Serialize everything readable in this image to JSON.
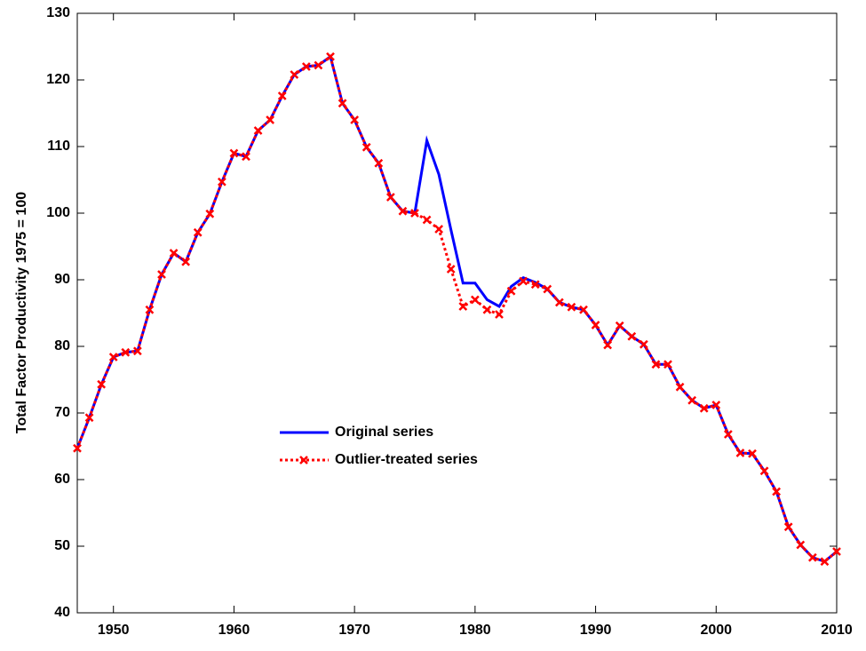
{
  "chart_data": {
    "type": "line",
    "ylabel": "Total Factor Productivity 1975 = 100",
    "x": [
      1947,
      1948,
      1949,
      1950,
      1951,
      1952,
      1953,
      1954,
      1955,
      1956,
      1957,
      1958,
      1959,
      1960,
      1961,
      1962,
      1963,
      1964,
      1965,
      1966,
      1967,
      1968,
      1969,
      1970,
      1971,
      1972,
      1973,
      1974,
      1975,
      1976,
      1977,
      1978,
      1979,
      1980,
      1981,
      1982,
      1983,
      1984,
      1985,
      1986,
      1987,
      1988,
      1989,
      1990,
      1991,
      1992,
      1993,
      1994,
      1995,
      1996,
      1997,
      1998,
      1999,
      2000,
      2001,
      2002,
      2003,
      2004,
      2005,
      2006,
      2007,
      2008,
      2009,
      2010
    ],
    "series": [
      {
        "name": "Original series",
        "color": "#0000ff",
        "linestyle": "solid",
        "marker": "none",
        "values": [
          64.7,
          69.3,
          74.3,
          78.4,
          79.1,
          79.3,
          85.5,
          90.8,
          94.0,
          92.7,
          97.1,
          99.9,
          104.7,
          109.0,
          108.5,
          112.4,
          114.0,
          117.6,
          120.8,
          122.0,
          122.2,
          123.5,
          116.5,
          114.0,
          109.9,
          107.5,
          102.4,
          100.3,
          100.0,
          110.9,
          105.8,
          97.5,
          89.5,
          89.5,
          87.0,
          86.0,
          89.0,
          90.3,
          89.6,
          88.6,
          86.6,
          85.9,
          85.5,
          83.2,
          80.2,
          83.1,
          81.5,
          80.3,
          77.3,
          77.3,
          73.9,
          71.9,
          70.7,
          71.2,
          66.8,
          64.0,
          63.9,
          61.3,
          58.2,
          52.9,
          50.2,
          48.3,
          47.7,
          49.2
        ]
      },
      {
        "name": "Outlier-treated series",
        "color": "#ff0000",
        "linestyle": "dotted",
        "marker": "x",
        "values": [
          64.7,
          69.3,
          74.3,
          78.4,
          79.1,
          79.3,
          85.5,
          90.8,
          94.0,
          92.7,
          97.1,
          99.9,
          104.7,
          109.0,
          108.5,
          112.4,
          114.0,
          117.6,
          120.8,
          122.0,
          122.2,
          123.5,
          116.5,
          114.0,
          109.9,
          107.5,
          102.4,
          100.3,
          100.0,
          99.0,
          97.6,
          91.6,
          86.0,
          87.0,
          85.5,
          84.8,
          88.3,
          89.8,
          89.3,
          88.6,
          86.6,
          85.9,
          85.5,
          83.2,
          80.2,
          83.1,
          81.5,
          80.3,
          77.3,
          77.3,
          73.9,
          71.9,
          70.7,
          71.2,
          66.8,
          64.0,
          63.9,
          61.3,
          58.2,
          52.9,
          50.2,
          48.3,
          47.7,
          49.2
        ]
      }
    ],
    "xlim": [
      1947,
      2010
    ],
    "xticks": [
      1950,
      1960,
      1970,
      1980,
      1990,
      2000,
      2010
    ],
    "ylim": [
      40,
      130
    ],
    "yticks": [
      40,
      50,
      60,
      70,
      80,
      90,
      100,
      110,
      120,
      130
    ],
    "grid": false,
    "legend": "center"
  }
}
